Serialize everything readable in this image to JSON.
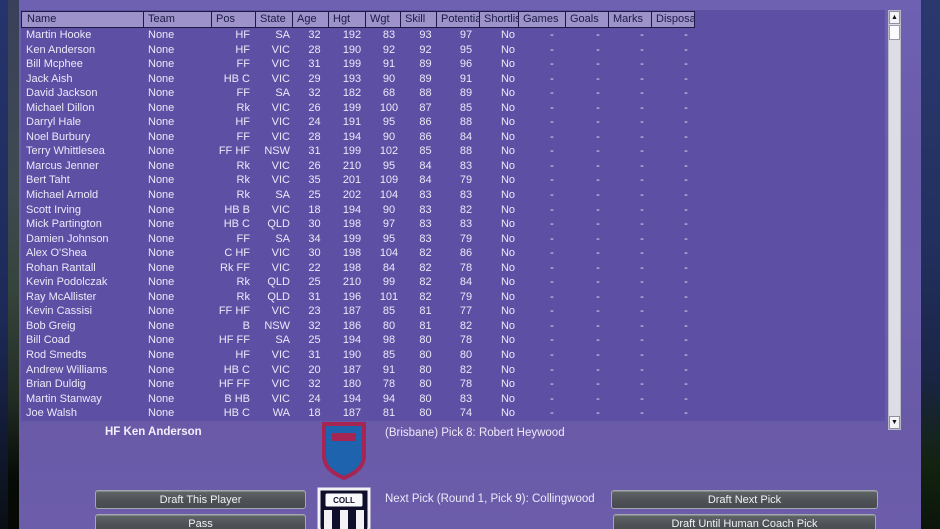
{
  "colors": {
    "background_purple": "#6A5CAA",
    "table_background": "#5D50A4",
    "header_background": "#9D92C9",
    "header_border": "#1B1B46",
    "row_text": "#ECE8F8",
    "button_gray": "#4E5256",
    "brisbane_maroon": "#A72552",
    "brisbane_blue": "#1E63AE",
    "collingwood_black": "#0E0E2A"
  },
  "table": {
    "columns": [
      "Name",
      "Team",
      "Pos",
      "State",
      "Age",
      "Hgt",
      "Wgt",
      "Skill",
      "Potential",
      "Shortlist",
      "Games",
      "Goals",
      "Marks",
      "Disposal"
    ],
    "rows": [
      [
        "Martin Hooke",
        "None",
        "HF",
        "SA",
        "32",
        "192",
        "83",
        "93",
        "97",
        "No",
        "-",
        "-",
        "-",
        "-"
      ],
      [
        "Ken Anderson",
        "None",
        "HF",
        "VIC",
        "28",
        "190",
        "92",
        "92",
        "95",
        "No",
        "-",
        "-",
        "-",
        "-"
      ],
      [
        "Bill Mcphee",
        "None",
        "FF",
        "VIC",
        "31",
        "199",
        "91",
        "89",
        "96",
        "No",
        "-",
        "-",
        "-",
        "-"
      ],
      [
        "Jack Aish",
        "None",
        "HB C",
        "VIC",
        "29",
        "193",
        "90",
        "89",
        "91",
        "No",
        "-",
        "-",
        "-",
        "-"
      ],
      [
        "David Jackson",
        "None",
        "FF",
        "SA",
        "32",
        "182",
        "68",
        "88",
        "89",
        "No",
        "-",
        "-",
        "-",
        "-"
      ],
      [
        "Michael Dillon",
        "None",
        "Rk",
        "VIC",
        "26",
        "199",
        "100",
        "87",
        "85",
        "No",
        "-",
        "-",
        "-",
        "-"
      ],
      [
        "Darryl Hale",
        "None",
        "HF",
        "VIC",
        "24",
        "191",
        "95",
        "86",
        "88",
        "No",
        "-",
        "-",
        "-",
        "-"
      ],
      [
        "Noel Burbury",
        "None",
        "FF",
        "VIC",
        "28",
        "194",
        "90",
        "86",
        "84",
        "No",
        "-",
        "-",
        "-",
        "-"
      ],
      [
        "Terry Whittlesea",
        "None",
        "FF HF",
        "NSW",
        "31",
        "199",
        "102",
        "85",
        "88",
        "No",
        "-",
        "-",
        "-",
        "-"
      ],
      [
        "Marcus Jenner",
        "None",
        "Rk",
        "VIC",
        "26",
        "210",
        "95",
        "84",
        "83",
        "No",
        "-",
        "-",
        "-",
        "-"
      ],
      [
        "Bert Taht",
        "None",
        "Rk",
        "VIC",
        "35",
        "201",
        "109",
        "84",
        "79",
        "No",
        "-",
        "-",
        "-",
        "-"
      ],
      [
        "Michael Arnold",
        "None",
        "Rk",
        "SA",
        "25",
        "202",
        "104",
        "83",
        "83",
        "No",
        "-",
        "-",
        "-",
        "-"
      ],
      [
        "Scott Irving",
        "None",
        "HB B",
        "VIC",
        "18",
        "194",
        "90",
        "83",
        "82",
        "No",
        "-",
        "-",
        "-",
        "-"
      ],
      [
        "Mick Partington",
        "None",
        "HB C",
        "QLD",
        "30",
        "198",
        "97",
        "83",
        "83",
        "No",
        "-",
        "-",
        "-",
        "-"
      ],
      [
        "Damien Johnson",
        "None",
        "FF",
        "SA",
        "34",
        "199",
        "95",
        "83",
        "79",
        "No",
        "-",
        "-",
        "-",
        "-"
      ],
      [
        "Alex O'Shea",
        "None",
        "C HF",
        "VIC",
        "30",
        "198",
        "104",
        "82",
        "86",
        "No",
        "-",
        "-",
        "-",
        "-"
      ],
      [
        "Rohan Rantall",
        "None",
        "Rk FF",
        "VIC",
        "22",
        "198",
        "84",
        "82",
        "78",
        "No",
        "-",
        "-",
        "-",
        "-"
      ],
      [
        "Kevin Podolczak",
        "None",
        "Rk",
        "QLD",
        "25",
        "210",
        "99",
        "82",
        "84",
        "No",
        "-",
        "-",
        "-",
        "-"
      ],
      [
        "Ray McAllister",
        "None",
        "Rk",
        "QLD",
        "31",
        "196",
        "101",
        "82",
        "79",
        "No",
        "-",
        "-",
        "-",
        "-"
      ],
      [
        "Kevin Cassisi",
        "None",
        "FF HF",
        "VIC",
        "23",
        "187",
        "85",
        "81",
        "77",
        "No",
        "-",
        "-",
        "-",
        "-"
      ],
      [
        "Bob Greig",
        "None",
        "B",
        "NSW",
        "32",
        "186",
        "80",
        "81",
        "82",
        "No",
        "-",
        "-",
        "-",
        "-"
      ],
      [
        "Bill Coad",
        "None",
        "HF FF",
        "SA",
        "25",
        "194",
        "98",
        "80",
        "78",
        "No",
        "-",
        "-",
        "-",
        "-"
      ],
      [
        "Rod Smedts",
        "None",
        "HF",
        "VIC",
        "31",
        "190",
        "85",
        "80",
        "80",
        "No",
        "-",
        "-",
        "-",
        "-"
      ],
      [
        "Andrew Williams",
        "None",
        "HB C",
        "VIC",
        "20",
        "187",
        "91",
        "80",
        "82",
        "No",
        "-",
        "-",
        "-",
        "-"
      ],
      [
        "Brian Duldig",
        "None",
        "HF FF",
        "VIC",
        "32",
        "180",
        "78",
        "80",
        "78",
        "No",
        "-",
        "-",
        "-",
        "-"
      ],
      [
        "Martin Stanway",
        "None",
        "B HB",
        "VIC",
        "24",
        "194",
        "94",
        "80",
        "83",
        "No",
        "-",
        "-",
        "-",
        "-"
      ],
      [
        "Joe Walsh",
        "None",
        "HB C",
        "WA",
        "18",
        "187",
        "81",
        "80",
        "74",
        "No",
        "-",
        "-",
        "-",
        "-"
      ]
    ]
  },
  "selection": {
    "selected_player": "HF Ken Anderson",
    "last_pick": "(Brisbane) Pick 8: Robert Heywood",
    "next_pick": "Next Pick (Round 1, Pick 9): Collingwood"
  },
  "buttons": {
    "draft_this_player": "Draft This Player",
    "pass": "Pass",
    "draft_next_pick": "Draft Next Pick",
    "draft_until_human": "Draft Until Human Coach Pick"
  },
  "logos": {
    "collingwood_text": "COLL"
  }
}
